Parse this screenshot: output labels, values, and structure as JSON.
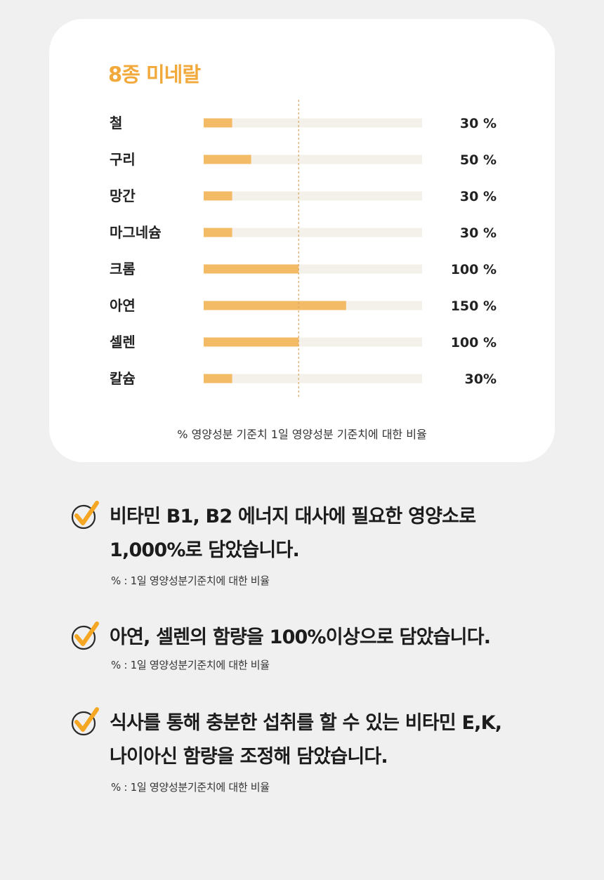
{
  "card": {
    "title": "8종 미네랄",
    "footnote": "% 영양성분 기준치 1일 영양성분 기준치에 대한 비율"
  },
  "chart_data": {
    "type": "bar",
    "orientation": "horizontal",
    "title": "8종 미네랄",
    "categories": [
      "철",
      "구리",
      "망간",
      "마그네슘",
      "크롬",
      "아연",
      "셀렌",
      "칼슘"
    ],
    "values": [
      30,
      50,
      30,
      30,
      100,
      150,
      100,
      30
    ],
    "value_labels": [
      "30 %",
      "50 %",
      "30 %",
      "30 %",
      "100 %",
      "150 %",
      "100 %",
      "30%"
    ],
    "xlim": [
      0,
      230
    ],
    "reference_line": 100,
    "grid": false,
    "colors": {
      "bar": "#f4bb67",
      "track": "#f4f0ea",
      "reference_line": "#d9a65e"
    }
  },
  "features": [
    {
      "lines": [
        "비타민 B1, B2 에너지 대사에 필요한 영양소로",
        "1,000%로 담았습니다."
      ],
      "note": "% : 1일 영양성분기준치에 대한 비율",
      "icon": "check-icon"
    },
    {
      "lines": [
        "아연, 셀렌의 함량을 100%이상으로 담았습니다."
      ],
      "note": "% : 1일 영양성분기준치에 대한 비율",
      "icon": "check-icon"
    },
    {
      "lines": [
        "식사를 통해 충분한 섭취를 할 수 있는 비타민 E,K,",
        "나이아신 함량을 조정해 담았습니다."
      ],
      "note": "% : 1일 영양성분기준치에 대한 비율",
      "icon": "check-icon"
    }
  ],
  "colors": {
    "accent": "#f2a93b",
    "check": "#f5a623",
    "background": "#f0f0f0",
    "card": "#ffffff"
  }
}
